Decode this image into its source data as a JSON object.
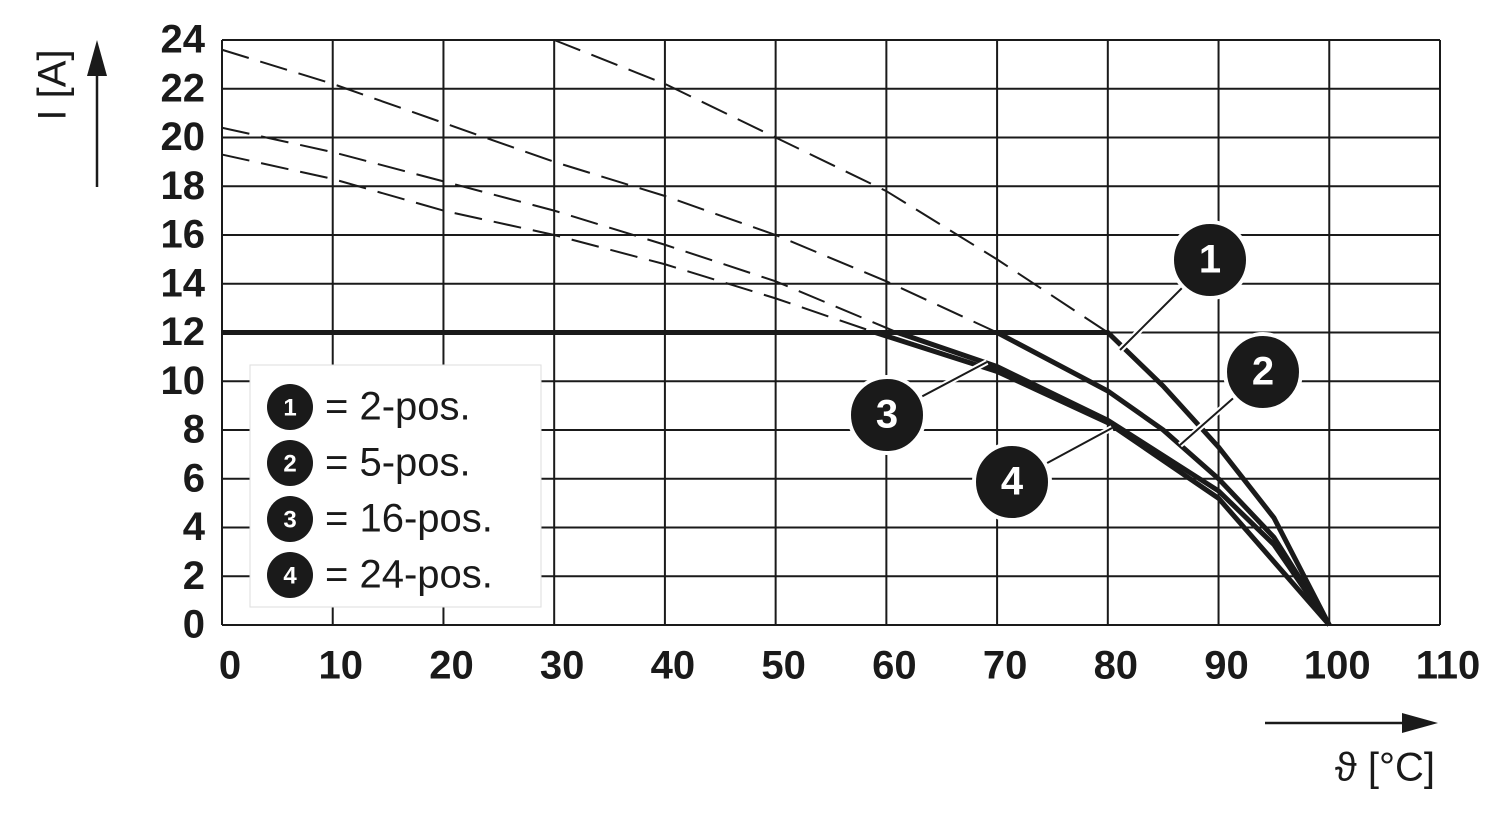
{
  "chart_data": {
    "type": "line",
    "x_label": "ϑ [°C]",
    "y_label": "I [A]",
    "xlim": [
      0,
      110
    ],
    "xticks": [
      0,
      10,
      20,
      30,
      40,
      50,
      60,
      70,
      80,
      90,
      100,
      110
    ],
    "ylim": [
      0,
      24
    ],
    "yticks": [
      0,
      2,
      4,
      6,
      8,
      10,
      12,
      14,
      16,
      18,
      20,
      22,
      24
    ],
    "grid": true,
    "color": "#1a1a1a",
    "series": [
      {
        "key": "1",
        "name": "= 2-pos.",
        "x": [
          0,
          80,
          85,
          90,
          95,
          100
        ],
        "values": [
          12,
          12,
          9.8,
          7.3,
          4.4,
          0
        ],
        "extension_x": [
          30,
          40,
          50,
          60,
          70,
          80
        ],
        "extension_values": [
          24,
          22.2,
          20,
          17.8,
          15,
          12
        ]
      },
      {
        "key": "2",
        "name": "= 5-pos.",
        "x": [
          0,
          70,
          80,
          85,
          90,
          95,
          100
        ],
        "values": [
          12,
          12,
          9.6,
          8,
          6,
          3.6,
          0
        ],
        "extension_x": [
          0,
          10,
          20,
          30,
          40,
          50,
          60,
          70
        ],
        "extension_values": [
          23.6,
          22.2,
          20.6,
          19,
          17.6,
          16,
          14.1,
          12
        ]
      },
      {
        "key": "3",
        "name": "= 16-pos.",
        "x": [
          0,
          61,
          70,
          80,
          90,
          95,
          100
        ],
        "values": [
          12,
          12,
          10.6,
          8.4,
          5.5,
          3.3,
          0
        ],
        "extension_x": [
          0,
          10,
          20,
          30,
          40,
          50,
          61
        ],
        "extension_values": [
          20.4,
          19.4,
          18.2,
          17,
          15.6,
          14.1,
          12
        ]
      },
      {
        "key": "4",
        "name": "= 24-pos.",
        "x": [
          0,
          59,
          70,
          80,
          90,
          100
        ],
        "values": [
          12,
          12,
          10.4,
          8.3,
          5.2,
          0
        ],
        "extension_x": [
          0,
          10,
          20,
          30,
          40,
          50,
          59
        ],
        "extension_values": [
          19.3,
          18.3,
          17,
          16,
          14.8,
          13.4,
          12
        ]
      }
    ]
  }
}
